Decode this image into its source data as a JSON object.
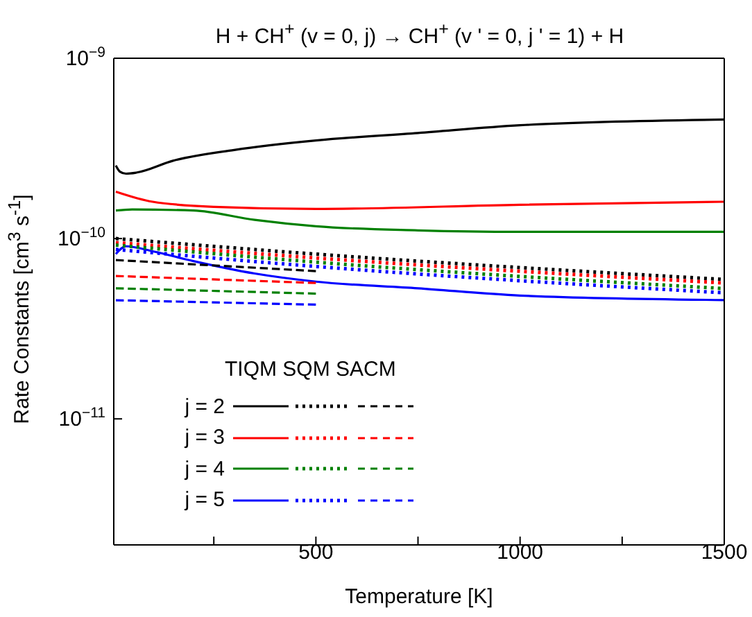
{
  "chart_data": {
    "type": "line",
    "title": "H + CH$^{+}$ (v = 0, j) → CH$^{+}$ (v ' = 0, j ' = 1) + H",
    "xlabel": "Temperature [K]",
    "ylabel": "Rate Constants [cm$^{3}$ s$^{-1}$]",
    "legend_title": "TIQM SQM SACM",
    "log": "y",
    "xlim": [
      5,
      1500
    ],
    "xticks": [
      {
        "value": 250,
        "label": null
      },
      500,
      {
        "value": 750,
        "label": null
      },
      1000,
      {
        "value": 1250,
        "label": null
      },
      1500
    ],
    "ylim": [
      2e-12,
      1e-09
    ],
    "yticks": [
      {
        "value": 1e-11,
        "label": "10$^{−11}$"
      },
      {
        "value": 1e-10,
        "label": "10$^{−10}$"
      },
      {
        "value": 1e-09,
        "label": "10$^{−9}$"
      }
    ],
    "grid": false,
    "legend": "bottom left",
    "marker": "none",
    "series": [
      {
        "name": "j = 2",
        "color": "#000000",
        "line_style": "solid",
        "x": [
          10,
          20,
          35,
          60,
          150,
          300,
          500,
          750,
          1000,
          1500
        ],
        "values": [
          2.54e-10,
          2.35e-10,
          2.29e-10,
          2.32e-10,
          2.7e-10,
          3.1e-10,
          3.5e-10,
          3.85e-10,
          4.25e-10,
          4.57e-10
        ]
      },
      {
        "name": "j = 3",
        "color": "#ff0000",
        "line_style": "solid",
        "x": [
          10,
          100,
          250,
          500,
          1000,
          1500
        ],
        "values": [
          1.82e-10,
          1.6e-10,
          1.5e-10,
          1.46e-10,
          1.54e-10,
          1.6e-10
        ]
      },
      {
        "name": "j = 4",
        "color": "#008000",
        "line_style": "solid",
        "x": [
          10,
          50,
          200,
          350,
          500,
          750,
          1000,
          1500
        ],
        "values": [
          1.43e-10,
          1.45e-10,
          1.43e-10,
          1.27e-10,
          1.17e-10,
          1.11e-10,
          1.09e-10,
          1.09e-10
        ]
      },
      {
        "name": "j = 5",
        "color": "#0000ff",
        "line_style": "solid",
        "x": [
          10,
          35,
          100,
          200,
          350,
          500,
          750,
          1000,
          1500
        ],
        "values": [
          8.2e-11,
          9.06e-11,
          8.5e-11,
          7.5e-11,
          6.4e-11,
          5.77e-11,
          5.3e-11,
          4.83e-11,
          4.56e-11
        ]
      },
      {
        "color": "#000000",
        "line_style": "dotted",
        "x": [
          10,
          500,
          1500
        ],
        "values": [
          1e-10,
          8.2e-11,
          5.93e-11
        ]
      },
      {
        "color": "#ff0000",
        "line_style": "dotted",
        "x": [
          10,
          500,
          1500
        ],
        "values": [
          9.5e-11,
          7.8e-11,
          5.67e-11
        ]
      },
      {
        "color": "#008000",
        "line_style": "dotted",
        "x": [
          10,
          500,
          1500
        ],
        "values": [
          9.2e-11,
          7.4e-11,
          5.28e-11
        ]
      },
      {
        "color": "#0000ff",
        "line_style": "dotted",
        "x": [
          10,
          500,
          1500
        ],
        "values": [
          8.7e-11,
          7e-11,
          5e-11
        ]
      },
      {
        "color": "#000000",
        "line_style": "dashed",
        "x": [
          10,
          500
        ],
        "values": [
          7.6e-11,
          6.6e-11
        ]
      },
      {
        "color": "#ff0000",
        "line_style": "dashed",
        "x": [
          10,
          500
        ],
        "values": [
          6.2e-11,
          5.67e-11
        ]
      },
      {
        "color": "#008000",
        "line_style": "dashed",
        "x": [
          10,
          500
        ],
        "values": [
          5.3e-11,
          4.95e-11
        ]
      },
      {
        "color": "#0000ff",
        "line_style": "dashed",
        "x": [
          10,
          500
        ],
        "values": [
          4.55e-11,
          4.3e-11
        ]
      }
    ]
  }
}
